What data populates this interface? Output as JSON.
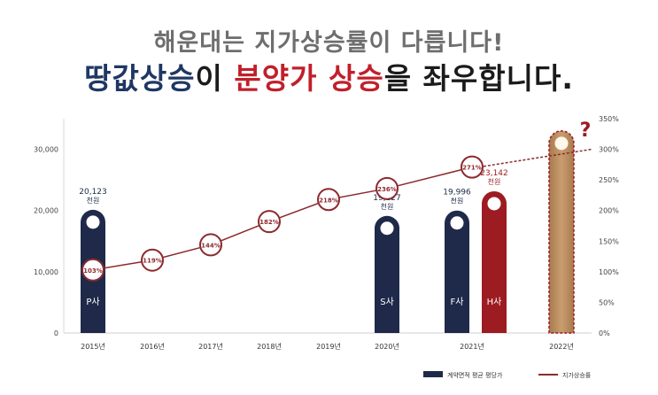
{
  "title": {
    "line1": "해운대는 지가상승률이 다릅니다!",
    "line2_part1": "땅값상승",
    "line2_part2": "이 ",
    "line2_part3": "분양가 상승",
    "line2_part4": "을 좌우합니다."
  },
  "colors": {
    "navy": "#1f2a4a",
    "red": "#9c1c22",
    "gold": "#b98a5c",
    "line": "#8c2a2f"
  },
  "chart_data": {
    "type": "bar",
    "y_left": {
      "ticks": [
        "0",
        "10,000",
        "20,000",
        "30,000"
      ],
      "range": [
        0,
        35000
      ]
    },
    "y_right": {
      "ticks": [
        "0%",
        "50%",
        "100%",
        "150%",
        "200%",
        "250%",
        "300%",
        "350%"
      ],
      "range": [
        0,
        350
      ]
    },
    "x_categories": [
      "2015년",
      "2016년",
      "2017년",
      "2018년",
      "2019년",
      "2020년",
      "2021년",
      "2022년"
    ],
    "bars": [
      {
        "x": "2015년",
        "value": 20123,
        "label": "P사",
        "value_label": "20,123",
        "unit": "천원",
        "color": "navy"
      },
      {
        "x": "2020년",
        "value": 19127,
        "label": "S사",
        "value_label": "19,127",
        "unit": "천원",
        "color": "navy"
      },
      {
        "x": "2021년",
        "value": 19996,
        "label": "F사",
        "value_label": "19,996",
        "unit": "천원",
        "color": "navy"
      },
      {
        "x": "2021년",
        "value": 23142,
        "label": "H사",
        "value_label": "23,142",
        "unit": "천원",
        "color": "red"
      },
      {
        "x": "2022년",
        "value": 33000,
        "label": "",
        "value_label": "?",
        "unit": "",
        "color": "gold"
      }
    ],
    "line": {
      "points": [
        {
          "x": "2015년",
          "value": 103,
          "label": "103%"
        },
        {
          "x": "2016년",
          "value": 119,
          "label": "119%"
        },
        {
          "x": "2017년",
          "value": 144,
          "label": "144%"
        },
        {
          "x": "2018년",
          "value": 182,
          "label": "182%"
        },
        {
          "x": "2019년",
          "value": 218,
          "label": "218%"
        },
        {
          "x": "2020년",
          "value": 236,
          "label": "236%"
        },
        {
          "x": "2021년",
          "value": 271,
          "label": "271%"
        }
      ],
      "extension": [
        {
          "x": "2021년",
          "value": 271
        },
        {
          "x": "2022년",
          "value": 300
        }
      ]
    },
    "legend": [
      {
        "label": "계약면적 평균 평당가",
        "kind": "bar"
      },
      {
        "label": "지가상승률",
        "kind": "line"
      }
    ],
    "legend_position": "bottom-right"
  }
}
